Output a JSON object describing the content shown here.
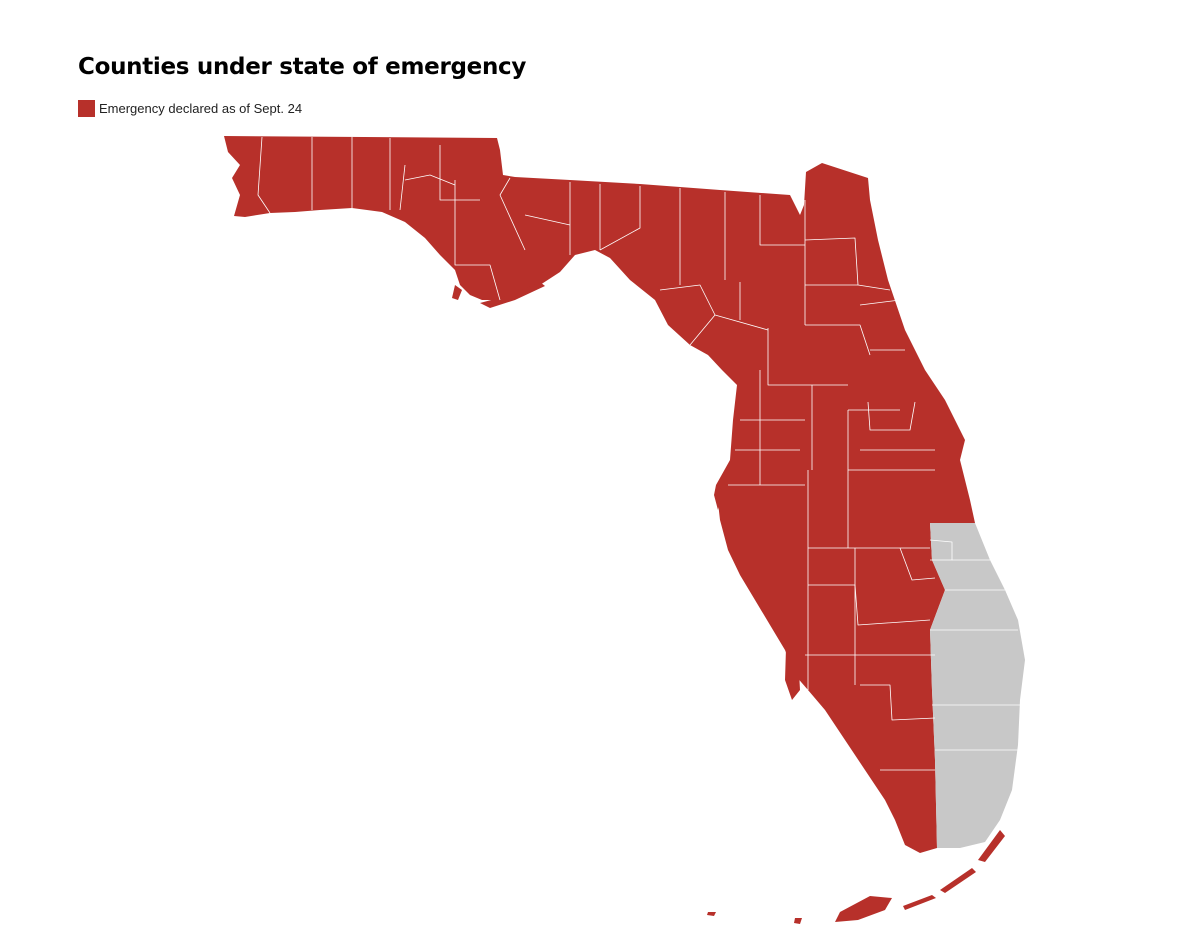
{
  "title": "Counties under state of emergency",
  "legend": {
    "label": "Emergency declared as of Sept. 24",
    "color": "#b7302a"
  },
  "colors": {
    "declared": "#b7302a",
    "not_declared": "#c8c8c8",
    "border": "#ffffff"
  }
}
